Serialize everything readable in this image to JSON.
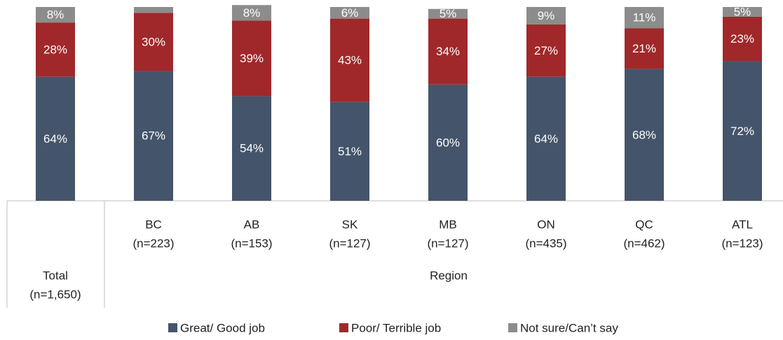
{
  "chart_data": {
    "type": "stacked_bar",
    "categories": [
      "Total",
      "BC",
      "AB",
      "SK",
      "MB",
      "ON",
      "QC",
      "ATL"
    ],
    "sample_sizes": [
      "(n=1,650)",
      "(n=223)",
      "(n=153)",
      "(n=127)",
      "(n=127)",
      "(n=435)",
      "(n=462)",
      "(n=123)"
    ],
    "group_label": "Region",
    "ylim": [
      0,
      100
    ],
    "series": [
      {
        "name": "Great/ Good job",
        "color": "#44546a",
        "values": [
          64,
          67,
          54,
          51,
          60,
          64,
          68,
          72
        ],
        "value_labels": [
          "64%",
          "67%",
          "54%",
          "51%",
          "60%",
          "64%",
          "68%",
          "72%"
        ]
      },
      {
        "name": "Poor/ Terrible job",
        "color": "#a0282a",
        "values": [
          28,
          30,
          39,
          43,
          34,
          27,
          21,
          23
        ],
        "value_labels": [
          "28%",
          "30%",
          "39%",
          "43%",
          "34%",
          "27%",
          "21%",
          "23%"
        ]
      },
      {
        "name": "Not sure/Can’t say",
        "color": "#8c8c8c",
        "values": [
          8,
          3,
          8,
          6,
          5,
          9,
          11,
          5
        ],
        "value_labels": [
          "8%",
          null,
          "8%",
          "6%",
          "5%",
          "9%",
          "11%",
          "5%"
        ]
      }
    ]
  }
}
